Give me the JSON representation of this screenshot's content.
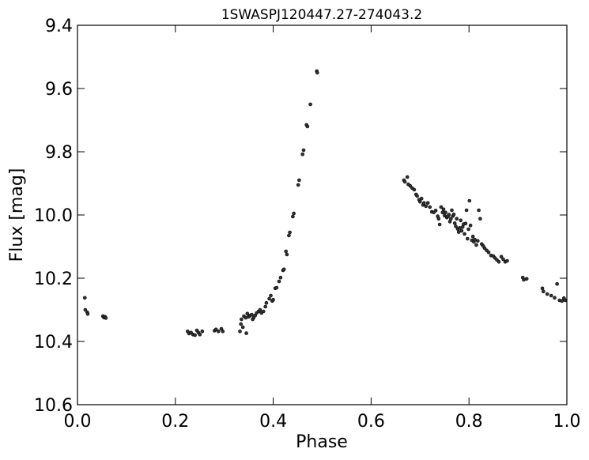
{
  "chart_data": {
    "type": "scatter",
    "title": "1SWASPJ120447.27-274043.2",
    "xlabel": "Phase",
    "ylabel": "Flux [mag]",
    "xlim": [
      0.0,
      1.0
    ],
    "ylim": [
      9.4,
      10.6
    ],
    "y_inverted": true,
    "grid": false,
    "xticks": [
      0.0,
      0.2,
      0.4,
      0.6,
      0.8,
      1.0
    ],
    "xtick_labels": [
      "0.0",
      "0.2",
      "0.4",
      "0.6",
      "0.8",
      "1.0"
    ],
    "yticks": [
      9.4,
      9.6,
      9.8,
      10.0,
      10.2,
      10.4,
      10.6
    ],
    "ytick_labels": [
      "9.4",
      "9.6",
      "9.8",
      "10.0",
      "10.2",
      "10.4",
      "10.6"
    ],
    "marker_color": "#333333",
    "series": [
      {
        "points": [
          [
            0.015,
            10.262
          ],
          [
            0.016,
            10.3
          ],
          [
            0.02,
            10.308
          ],
          [
            0.021,
            10.313
          ],
          [
            0.052,
            10.32
          ],
          [
            0.054,
            10.324
          ],
          [
            0.056,
            10.322
          ],
          [
            0.058,
            10.326
          ],
          [
            0.225,
            10.368
          ],
          [
            0.228,
            10.375
          ],
          [
            0.232,
            10.372
          ],
          [
            0.236,
            10.378
          ],
          [
            0.24,
            10.38
          ],
          [
            0.244,
            10.365
          ],
          [
            0.247,
            10.372
          ],
          [
            0.25,
            10.378
          ],
          [
            0.255,
            10.368
          ],
          [
            0.28,
            10.366
          ],
          [
            0.283,
            10.362
          ],
          [
            0.288,
            10.368
          ],
          [
            0.294,
            10.36
          ],
          [
            0.297,
            10.368
          ],
          [
            0.332,
            10.368
          ],
          [
            0.334,
            10.345
          ],
          [
            0.335,
            10.33
          ],
          [
            0.338,
            10.355
          ],
          [
            0.34,
            10.32
          ],
          [
            0.344,
            10.325
          ],
          [
            0.345,
            10.374
          ],
          [
            0.347,
            10.312
          ],
          [
            0.35,
            10.322
          ],
          [
            0.353,
            10.318
          ],
          [
            0.356,
            10.315
          ],
          [
            0.358,
            10.33
          ],
          [
            0.36,
            10.325
          ],
          [
            0.363,
            10.318
          ],
          [
            0.366,
            10.31
          ],
          [
            0.37,
            10.305
          ],
          [
            0.373,
            10.3
          ],
          [
            0.376,
            10.31
          ],
          [
            0.38,
            10.305
          ],
          [
            0.384,
            10.29
          ],
          [
            0.386,
            10.278
          ],
          [
            0.392,
            10.265
          ],
          [
            0.395,
            10.255
          ],
          [
            0.398,
            10.272
          ],
          [
            0.4,
            10.268
          ],
          [
            0.404,
            10.232
          ],
          [
            0.407,
            10.23
          ],
          [
            0.412,
            10.21
          ],
          [
            0.415,
            10.198
          ],
          [
            0.42,
            10.175
          ],
          [
            0.422,
            10.172
          ],
          [
            0.426,
            10.115
          ],
          [
            0.428,
            10.125
          ],
          [
            0.432,
            10.065
          ],
          [
            0.434,
            10.055
          ],
          [
            0.44,
            10.005
          ],
          [
            0.442,
            9.995
          ],
          [
            0.451,
            9.905
          ],
          [
            0.453,
            9.89
          ],
          [
            0.46,
            9.808
          ],
          [
            0.462,
            9.795
          ],
          [
            0.468,
            9.715
          ],
          [
            0.47,
            9.72
          ],
          [
            0.476,
            9.65
          ],
          [
            0.489,
            9.545
          ],
          [
            0.49,
            9.55
          ],
          [
            0.667,
            9.89
          ],
          [
            0.669,
            9.895
          ],
          [
            0.674,
            9.88
          ],
          [
            0.676,
            9.903
          ],
          [
            0.68,
            9.908
          ],
          [
            0.684,
            9.915
          ],
          [
            0.688,
            9.92
          ],
          [
            0.692,
            9.935
          ],
          [
            0.694,
            9.94
          ],
          [
            0.698,
            9.952
          ],
          [
            0.7,
            9.958
          ],
          [
            0.703,
            9.948
          ],
          [
            0.706,
            9.968
          ],
          [
            0.708,
            9.962
          ],
          [
            0.712,
            9.972
          ],
          [
            0.716,
            9.962
          ],
          [
            0.72,
            9.975
          ],
          [
            0.724,
            9.99
          ],
          [
            0.728,
            9.992
          ],
          [
            0.732,
            9.986
          ],
          [
            0.736,
            10.004
          ],
          [
            0.738,
            10.012
          ],
          [
            0.74,
            10.03
          ],
          [
            0.743,
            9.975
          ],
          [
            0.746,
            9.992
          ],
          [
            0.748,
            9.982
          ],
          [
            0.75,
            10.002
          ],
          [
            0.752,
            9.992
          ],
          [
            0.755,
            10.008
          ],
          [
            0.757,
            10.004
          ],
          [
            0.759,
            9.999
          ],
          [
            0.761,
            10.021
          ],
          [
            0.763,
            10.012
          ],
          [
            0.765,
            9.985
          ],
          [
            0.767,
            10.003
          ],
          [
            0.769,
            9.998
          ],
          [
            0.771,
            10.026
          ],
          [
            0.773,
            10.036
          ],
          [
            0.775,
            10.012
          ],
          [
            0.777,
            10.044
          ],
          [
            0.779,
            10.054
          ],
          [
            0.781,
            10.041
          ],
          [
            0.783,
            10.017
          ],
          [
            0.785,
            10.05
          ],
          [
            0.787,
            10.038
          ],
          [
            0.789,
            10.029
          ],
          [
            0.791,
            10.06
          ],
          [
            0.793,
            10.027
          ],
          [
            0.795,
            9.985
          ],
          [
            0.797,
            10.075
          ],
          [
            0.799,
            10.045
          ],
          [
            0.801,
            9.955
          ],
          [
            0.803,
            10.033
          ],
          [
            0.806,
            10.08
          ],
          [
            0.808,
            10.068
          ],
          [
            0.81,
            10.085
          ],
          [
            0.812,
            10.078
          ],
          [
            0.815,
            10.095
          ],
          [
            0.818,
            10.082
          ],
          [
            0.82,
            9.985
          ],
          [
            0.823,
            10.012
          ],
          [
            0.826,
            10.092
          ],
          [
            0.829,
            10.098
          ],
          [
            0.832,
            10.105
          ],
          [
            0.836,
            10.112
          ],
          [
            0.84,
            10.118
          ],
          [
            0.845,
            10.128
          ],
          [
            0.85,
            10.13
          ],
          [
            0.853,
            10.136
          ],
          [
            0.857,
            10.142
          ],
          [
            0.861,
            10.148
          ],
          [
            0.866,
            10.132
          ],
          [
            0.87,
            10.14
          ],
          [
            0.874,
            10.148
          ],
          [
            0.878,
            10.145
          ],
          [
            0.91,
            10.198
          ],
          [
            0.912,
            10.205
          ],
          [
            0.918,
            10.202
          ],
          [
            0.95,
            10.232
          ],
          [
            0.952,
            10.242
          ],
          [
            0.96,
            10.25
          ],
          [
            0.968,
            10.255
          ],
          [
            0.975,
            10.262
          ],
          [
            0.98,
            10.218
          ],
          [
            0.985,
            10.27
          ],
          [
            0.99,
            10.272
          ],
          [
            0.994,
            10.263
          ],
          [
            0.997,
            10.27
          ]
        ]
      }
    ]
  }
}
